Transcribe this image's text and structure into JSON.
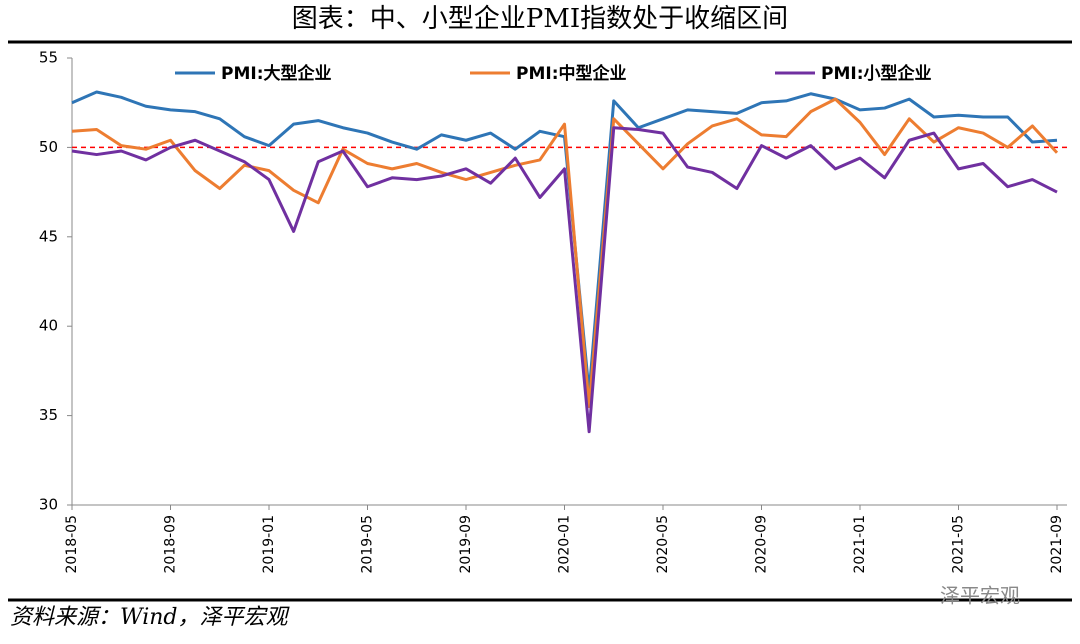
{
  "chart_data": {
    "type": "line",
    "title": "图表：中、小型企业PMI指数处于收缩区间",
    "source": "资料来源：Wind，泽平宏观",
    "watermark": "泽平宏观",
    "categories": [
      "2018-05",
      null,
      null,
      null,
      "2018-09",
      null,
      null,
      null,
      "2019-01",
      null,
      null,
      null,
      "2019-05",
      null,
      null,
      null,
      "2019-09",
      null,
      null,
      null,
      "2020-01",
      null,
      null,
      null,
      "2020-05",
      null,
      null,
      null,
      "2020-09",
      null,
      null,
      null,
      "2021-01",
      null,
      null,
      null,
      "2021-05",
      null,
      null,
      null,
      "2021-09"
    ],
    "series": [
      {
        "name": "PMI:大型企业",
        "color": "#2e75b6",
        "values": [
          52.5,
          53.1,
          52.8,
          52.3,
          52.1,
          52.0,
          51.6,
          50.6,
          50.1,
          51.3,
          51.5,
          51.1,
          50.8,
          50.3,
          49.9,
          50.7,
          50.4,
          50.8,
          49.9,
          50.9,
          50.6,
          36.3,
          52.6,
          51.1,
          51.6,
          52.1,
          52.0,
          51.9,
          52.5,
          52.6,
          53.0,
          52.7,
          52.1,
          52.2,
          52.7,
          51.7,
          51.8,
          51.7,
          51.7,
          50.3,
          50.4
        ]
      },
      {
        "name": "PMI:中型企业",
        "color": "#ed7d31",
        "values": [
          50.9,
          51.0,
          50.1,
          49.9,
          50.4,
          48.7,
          47.7,
          49.0,
          48.7,
          47.6,
          46.9,
          49.9,
          49.1,
          48.8,
          49.1,
          48.6,
          48.2,
          48.6,
          49.0,
          49.3,
          51.3,
          35.5,
          51.6,
          50.2,
          48.8,
          50.2,
          51.2,
          51.6,
          50.7,
          50.6,
          52.0,
          52.7,
          51.4,
          49.6,
          51.6,
          50.3,
          51.1,
          50.8,
          50.0,
          51.2,
          49.7
        ]
      },
      {
        "name": "PMI:小型企业",
        "color": "#7030a0",
        "values": [
          49.8,
          49.6,
          49.8,
          49.3,
          50.0,
          50.4,
          49.8,
          49.2,
          48.2,
          45.3,
          49.2,
          49.8,
          47.8,
          48.3,
          48.2,
          48.4,
          48.8,
          48.0,
          49.4,
          47.2,
          48.8,
          34.1,
          51.1,
          51.0,
          50.8,
          48.9,
          48.6,
          47.7,
          50.1,
          49.4,
          50.1,
          48.8,
          49.4,
          48.3,
          50.4,
          50.8,
          48.8,
          49.1,
          47.8,
          48.2,
          47.5
        ]
      }
    ],
    "ylim": [
      30,
      55
    ],
    "yticks": [
      30,
      35,
      40,
      45,
      50,
      55
    ],
    "reference_line": {
      "value": 50,
      "color": "#ff0000"
    },
    "grid": false,
    "legend": "top"
  }
}
